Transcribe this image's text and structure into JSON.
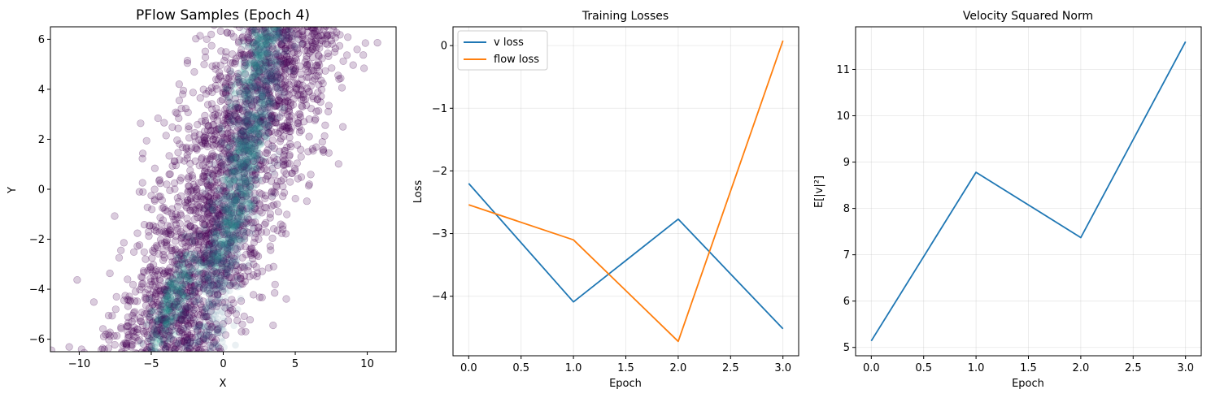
{
  "chart_data": [
    {
      "type": "scatter",
      "title": "PFlow Samples (Epoch 4)",
      "xlabel": "X",
      "ylabel": "Y",
      "xlim": [
        -12,
        12
      ],
      "ylim": [
        -6.5,
        6.5
      ],
      "xticks": [
        "−10",
        "−5",
        "0",
        "5",
        "10"
      ],
      "xtick_values": [
        -10,
        -5,
        0,
        5,
        10
      ],
      "yticks": [
        "−6",
        "−4",
        "−2",
        "0",
        "2",
        "4",
        "6"
      ],
      "ytick_values": [
        -6,
        -4,
        -2,
        0,
        2,
        4,
        6
      ],
      "grid": false,
      "point_color": "#440154",
      "point_alpha": 0.2,
      "density_high_color": "#21918c",
      "distribution": {
        "description_free_parameters": true,
        "slope_x_per_y": 0.68,
        "center_x_at_y0": 0.1,
        "spread_x": 2.3,
        "core_points": [
          [
            1.5,
            1.5
          ],
          [
            -3.5,
            -4.5
          ],
          [
            0.5,
            -1.5
          ],
          [
            2.5,
            5.5
          ]
        ]
      }
    },
    {
      "type": "line",
      "title": "Training Losses",
      "xlabel": "Epoch",
      "ylabel": "Loss",
      "xlim": [
        -0.15,
        3.15
      ],
      "ylim": [
        -4.95,
        0.3
      ],
      "xticks": [
        "0.0",
        "0.5",
        "1.0",
        "1.5",
        "2.0",
        "2.5",
        "3.0"
      ],
      "xtick_values": [
        0,
        0.5,
        1,
        1.5,
        2,
        2.5,
        3
      ],
      "yticks": [
        "−4",
        "−3",
        "−2",
        "−1",
        "0"
      ],
      "ytick_values": [
        -4,
        -3,
        -2,
        -1,
        0
      ],
      "grid": true,
      "legend": "top-left",
      "x": [
        0,
        1,
        2,
        3
      ],
      "series": [
        {
          "name": "v loss",
          "color": "#1f77b4",
          "values": [
            -2.2,
            -4.09,
            -2.77,
            -4.52
          ]
        },
        {
          "name": "flow loss",
          "color": "#ff7f0e",
          "values": [
            -2.54,
            -3.1,
            -4.72,
            0.08
          ]
        }
      ]
    },
    {
      "type": "line",
      "title": "Velocity Squared Norm",
      "xlabel": "Epoch",
      "ylabel": "E[|v|²]",
      "xlim": [
        -0.15,
        3.15
      ],
      "ylim": [
        4.82,
        11.92
      ],
      "xticks": [
        "0.0",
        "0.5",
        "1.0",
        "1.5",
        "2.0",
        "2.5",
        "3.0"
      ],
      "xtick_values": [
        0,
        0.5,
        1,
        1.5,
        2,
        2.5,
        3
      ],
      "yticks": [
        "5",
        "6",
        "7",
        "8",
        "9",
        "10",
        "11"
      ],
      "ytick_values": [
        5,
        6,
        7,
        8,
        9,
        10,
        11
      ],
      "grid": true,
      "x": [
        0,
        1,
        2,
        3
      ],
      "series": [
        {
          "color": "#1f77b4",
          "values": [
            5.14,
            8.78,
            7.37,
            11.6
          ]
        }
      ]
    }
  ]
}
